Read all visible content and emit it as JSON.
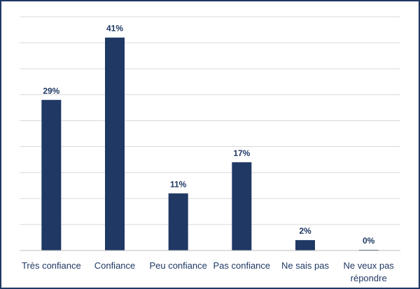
{
  "chart_data": {
    "type": "bar",
    "categories": [
      [
        "Très confiance"
      ],
      [
        "Confiance"
      ],
      [
        "Peu confiance"
      ],
      [
        "Pas confiance"
      ],
      [
        "Ne sais pas"
      ],
      [
        "Ne veux pas",
        "répondre"
      ]
    ],
    "values": [
      29,
      41,
      11,
      17,
      2,
      0
    ],
    "data_labels": [
      "29%",
      "41%",
      "11%",
      "17%",
      "2%",
      "0%"
    ],
    "ylim": [
      0,
      45
    ],
    "grid": true,
    "legend": "none",
    "colors": {
      "bar": "#1f3864",
      "grid": "#d9d9d9",
      "axis": "#bfbfbf",
      "text": "#1f3864",
      "border": "#1f3864"
    }
  }
}
